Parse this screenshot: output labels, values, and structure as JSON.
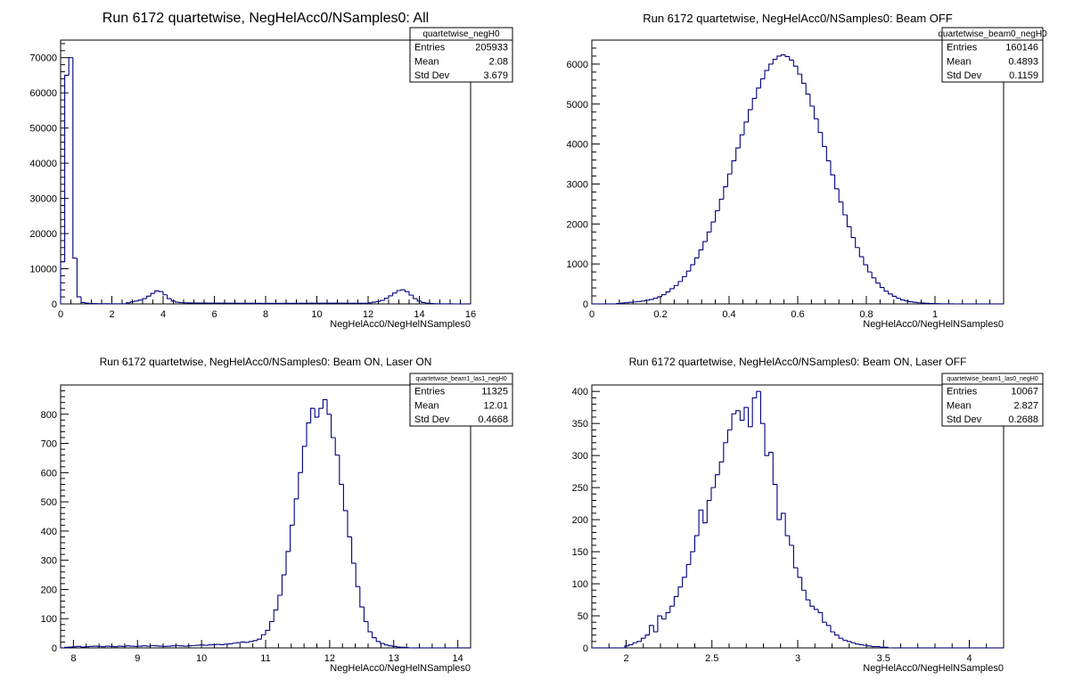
{
  "chart_data": [
    {
      "type": "bar",
      "title": "Run 6172 quartetwise, NegHelAcc0/NSamples0: All",
      "xlabel": "NegHelAcc0/NegHelNSamples0",
      "ylabel": "",
      "xlim": [
        0,
        16
      ],
      "ylim": [
        0,
        75000
      ],
      "xticks": [
        "0",
        "2",
        "4",
        "6",
        "8",
        "10",
        "12",
        "14",
        "16"
      ],
      "yticks": [
        "0",
        "10000",
        "20000",
        "30000",
        "40000",
        "50000",
        "60000",
        "70000"
      ],
      "stats": {
        "name": "quartetwise_negH0",
        "entries": "205933",
        "mean": "2.08",
        "std": "3.679"
      },
      "x_start": 0,
      "bin_width": 0.16,
      "values": [
        12000,
        65000,
        70000,
        13000,
        2000,
        400,
        200,
        100,
        80,
        60,
        50,
        40,
        30,
        30,
        30,
        30,
        300,
        600,
        800,
        1100,
        1500,
        2200,
        3000,
        3700,
        3500,
        2600,
        1500,
        800,
        500,
        350,
        300,
        280,
        260,
        250,
        240,
        230,
        220,
        220,
        210,
        200,
        200,
        200,
        200,
        190,
        180,
        180,
        170,
        170,
        170,
        160,
        160,
        160,
        160,
        160,
        160,
        170,
        170,
        180,
        180,
        190,
        190,
        200,
        200,
        200,
        200,
        210,
        210,
        200,
        200,
        200,
        190,
        190,
        190,
        180,
        180,
        300,
        500,
        700,
        1000,
        1600,
        2300,
        3100,
        3800,
        4000,
        3500,
        2500,
        1500,
        800,
        400,
        200,
        100,
        60,
        30,
        20,
        10,
        5,
        0,
        0,
        0,
        0
      ]
    },
    {
      "type": "bar",
      "title": "Run 6172 quartetwise, NegHelAcc0/NSamples0: Beam OFF",
      "xlabel": "NegHelAcc0/NegHelNSamples0",
      "ylabel": "",
      "xlim": [
        0,
        1.2
      ],
      "ylim": [
        0,
        6600
      ],
      "xticks": [
        "0",
        "0.2",
        "0.4",
        "0.6",
        "0.8",
        "1"
      ],
      "yticks": [
        "0",
        "1000",
        "2000",
        "3000",
        "4000",
        "5000",
        "6000"
      ],
      "stats": {
        "name": "quartetwise_beam0_negH0",
        "entries": "160146",
        "mean": "0.4893",
        "std": "0.1159"
      },
      "x_start": 0,
      "bin_width": 0.012,
      "values": [
        0,
        0,
        0,
        0,
        0,
        0,
        10,
        20,
        30,
        40,
        50,
        60,
        70,
        90,
        110,
        140,
        180,
        230,
        300,
        380,
        460,
        560,
        680,
        820,
        980,
        1150,
        1350,
        1560,
        1800,
        2050,
        2330,
        2620,
        2930,
        3250,
        3580,
        3900,
        4230,
        4550,
        4860,
        5140,
        5400,
        5630,
        5840,
        6000,
        6120,
        6200,
        6230,
        6190,
        6100,
        5950,
        5750,
        5520,
        5250,
        4950,
        4630,
        4290,
        3940,
        3580,
        3230,
        2880,
        2550,
        2230,
        1930,
        1660,
        1410,
        1180,
        980,
        800,
        650,
        520,
        410,
        320,
        250,
        190,
        140,
        100,
        75,
        55,
        40,
        28,
        20,
        15,
        10,
        7,
        5,
        3,
        2,
        1,
        0,
        0,
        0,
        0,
        0,
        0,
        0,
        0,
        0,
        0,
        0,
        0
      ]
    },
    {
      "type": "bar",
      "title": "Run 6172 quartetwise, NegHelAcc0/NSamples0: Beam ON, Laser ON",
      "xlabel": "NegHelAcc0/NegHelNSamples0",
      "ylabel": "",
      "xlim": [
        7.8,
        14.2
      ],
      "ylim": [
        0,
        900
      ],
      "xticks": [
        "8",
        "9",
        "10",
        "11",
        "12",
        "13",
        "14"
      ],
      "yticks": [
        "0",
        "100",
        "200",
        "300",
        "400",
        "500",
        "600",
        "700",
        "800"
      ],
      "stats": {
        "name": "quartetwise_beam1_las1_negH0",
        "entries": "11325",
        "mean": "12.01",
        "std": "0.4668"
      },
      "x_start": 7.8,
      "bin_width": 0.064,
      "values": [
        0,
        2,
        3,
        4,
        5,
        3,
        4,
        5,
        6,
        5,
        4,
        6,
        5,
        4,
        6,
        5,
        7,
        6,
        5,
        6,
        7,
        6,
        8,
        7,
        6,
        5,
        6,
        7,
        8,
        7,
        6,
        7,
        8,
        9,
        10,
        9,
        10,
        11,
        12,
        11,
        13,
        14,
        16,
        18,
        20,
        19,
        22,
        25,
        30,
        45,
        60,
        90,
        130,
        180,
        250,
        330,
        420,
        510,
        600,
        690,
        770,
        820,
        790,
        820,
        850,
        800,
        720,
        660,
        560,
        470,
        380,
        290,
        210,
        140,
        90,
        55,
        35,
        22,
        15,
        10,
        7,
        5,
        3,
        2,
        1,
        0,
        0,
        0,
        0,
        0,
        0,
        0,
        0,
        0,
        0,
        0,
        0,
        0,
        0,
        0
      ]
    },
    {
      "type": "bar",
      "title": "Run 6172 quartetwise, NegHelAcc0/NSamples0: Beam ON, Laser OFF",
      "xlabel": "NegHelAcc0/NegHelNSamples0",
      "ylabel": "",
      "xlim": [
        1.8,
        4.2
      ],
      "ylim": [
        0,
        410
      ],
      "xticks": [
        "2",
        "2.5",
        "3",
        "3.5",
        "4"
      ],
      "yticks": [
        "0",
        "50",
        "100",
        "150",
        "200",
        "250",
        "300",
        "350",
        "400"
      ],
      "stats": {
        "name": "quartetwise_beam1_las0_negH0",
        "entries": "10067",
        "mean": "2.827",
        "std": "0.2688"
      },
      "x_start": 1.8,
      "bin_width": 0.024,
      "values": [
        0,
        0,
        0,
        0,
        0,
        0,
        0,
        0,
        3,
        5,
        8,
        10,
        15,
        20,
        35,
        25,
        50,
        45,
        55,
        65,
        80,
        95,
        110,
        130,
        150,
        175,
        215,
        195,
        230,
        250,
        270,
        290,
        320,
        340,
        365,
        370,
        355,
        375,
        345,
        390,
        400,
        350,
        300,
        305,
        255,
        200,
        210,
        175,
        160,
        125,
        110,
        90,
        75,
        65,
        60,
        55,
        40,
        35,
        25,
        20,
        15,
        12,
        10,
        8,
        6,
        5,
        4,
        3,
        2,
        2,
        1,
        1,
        0,
        0,
        0,
        0,
        0,
        0,
        0,
        0,
        0,
        0,
        0,
        0,
        0,
        0,
        0,
        0,
        0,
        0,
        0,
        0,
        0,
        0,
        0,
        0,
        0,
        0,
        0,
        0
      ]
    }
  ],
  "stat_labels": {
    "entries": "Entries",
    "mean": "Mean",
    "std": "Std Dev"
  },
  "colors": {
    "line": "#000080",
    "axis": "#000000"
  }
}
